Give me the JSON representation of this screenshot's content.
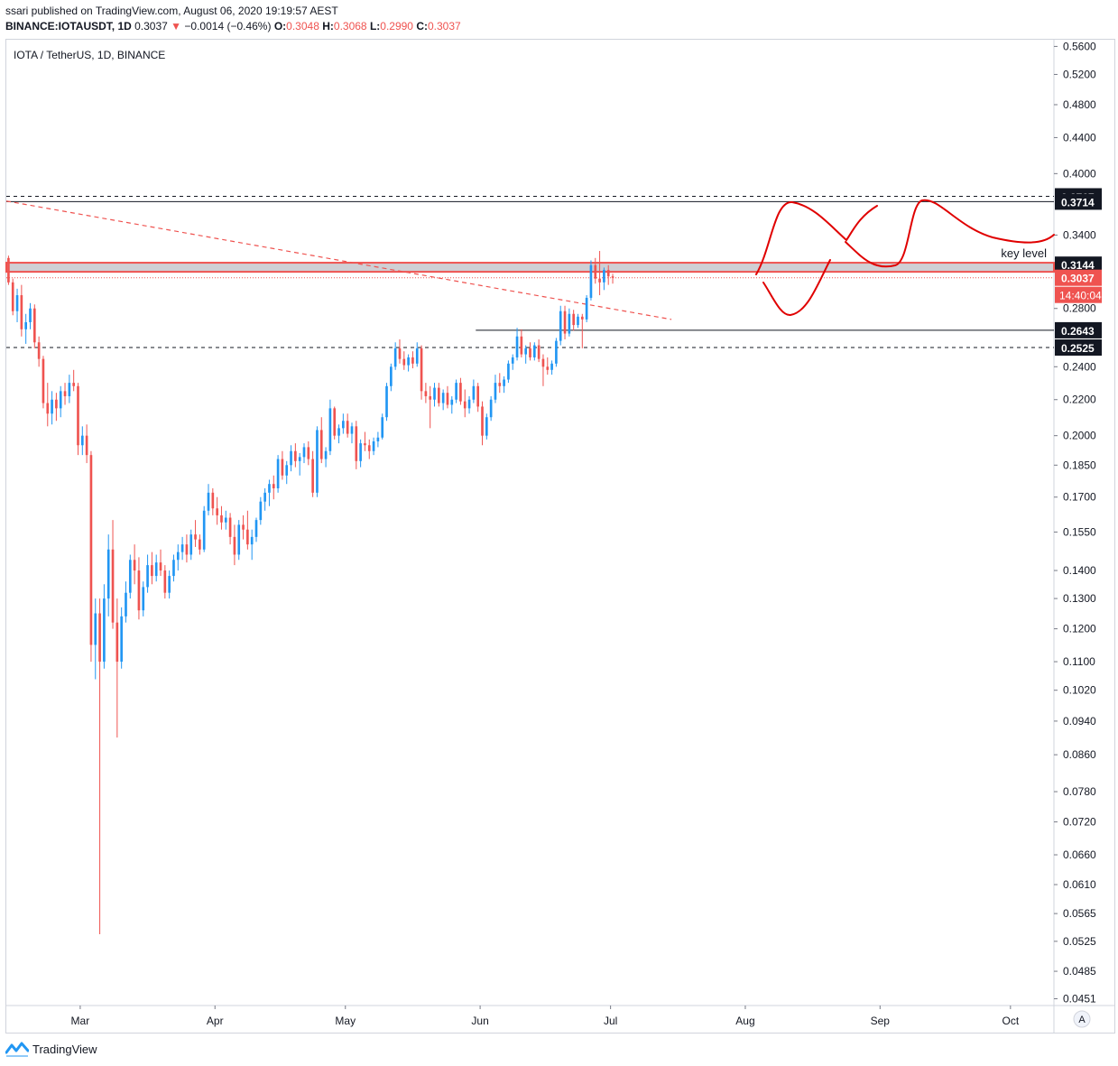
{
  "header": {
    "published": "ssari published on TradingView.com, August 06, 2020 19:19:57 AEST",
    "symbol": "BINANCE:IOTAUSDT, 1D",
    "last": "0.3037",
    "down_arrow": "▼",
    "change": "−0.0014 (−0.46%)",
    "o_label": "O:",
    "o_value": "0.3048",
    "h_label": "H:",
    "h_value": "0.3068",
    "l_label": "L:",
    "l_value": "0.2990",
    "c_label": "C:",
    "c_value": "0.3037"
  },
  "legend": "IOTA / TetherUS, 1D, BINANCE",
  "footer": {
    "brand": "TradingView"
  },
  "colors": {
    "up": "#2196f3",
    "down": "#ef5350",
    "drawing": "#e00000",
    "zone": "#cfcfd4",
    "label_bg": "#131722"
  },
  "chart_data": {
    "type": "candlestick",
    "scale": "log",
    "title": "IOTA / TetherUS, 1D, BINANCE",
    "ylim": [
      0.0443,
      0.57
    ],
    "yticks": [
      0.56,
      0.52,
      0.48,
      0.44,
      0.4,
      0.34,
      0.28,
      0.24,
      0.22,
      0.2,
      0.185,
      0.17,
      0.155,
      0.14,
      0.13,
      0.12,
      0.11,
      0.102,
      0.094,
      0.086,
      0.078,
      0.072,
      0.066,
      0.061,
      0.0565,
      0.0525,
      0.0485,
      0.0451
    ],
    "ytick_labels": [
      "0.5600",
      "0.5200",
      "0.4800",
      "0.4400",
      "0.4000",
      "0.3400",
      "0.2800",
      "0.2400",
      "0.2200",
      "0.2000",
      "0.1850",
      "0.1700",
      "0.1550",
      "0.1400",
      "0.1300",
      "0.1200",
      "0.1100",
      "0.1020",
      "0.0940",
      "0.0860",
      "0.0780",
      "0.0720",
      "0.0660",
      "0.0610",
      "0.0565",
      "0.0525",
      "0.0485",
      "0.0451"
    ],
    "x_start": "2020-02-13",
    "x_range_days": [
      0,
      241
    ],
    "month_labels": [
      {
        "label": "Mar",
        "day": 17
      },
      {
        "label": "Apr",
        "day": 48
      },
      {
        "label": "May",
        "day": 78
      },
      {
        "label": "Jun",
        "day": 109
      },
      {
        "label": "Jul",
        "day": 139
      },
      {
        "label": "Aug",
        "day": 170
      },
      {
        "label": "Sep",
        "day": 201
      },
      {
        "label": "Oct",
        "day": 231
      }
    ],
    "price_labels": [
      {
        "value": "0.3767",
        "price": 0.3767,
        "style": "dashed"
      },
      {
        "value": "0.3714",
        "price": 0.3714,
        "style": "solid"
      },
      {
        "value": "0.3144",
        "price": 0.3144,
        "style": "zone"
      },
      {
        "value": "0.3037",
        "price": 0.3037,
        "style": "last"
      },
      {
        "value": "0.2643",
        "price": 0.2643,
        "style": "solid"
      },
      {
        "value": "0.2525",
        "price": 0.2525,
        "style": "dashed"
      }
    ],
    "countdown": "14:40:04",
    "key_level": {
      "label": "key level",
      "low": 0.3085,
      "high": 0.316
    },
    "ohlc": [
      [
        0.32,
        0.322,
        0.298,
        0.3
      ],
      [
        0.3,
        0.303,
        0.275,
        0.278
      ],
      [
        0.278,
        0.295,
        0.27,
        0.29
      ],
      [
        0.29,
        0.298,
        0.26,
        0.265
      ],
      [
        0.265,
        0.276,
        0.255,
        0.27
      ],
      [
        0.27,
        0.284,
        0.265,
        0.28
      ],
      [
        0.28,
        0.283,
        0.252,
        0.256
      ],
      [
        0.256,
        0.26,
        0.24,
        0.245
      ],
      [
        0.245,
        0.247,
        0.215,
        0.218
      ],
      [
        0.218,
        0.23,
        0.205,
        0.212
      ],
      [
        0.212,
        0.225,
        0.206,
        0.22
      ],
      [
        0.22,
        0.224,
        0.208,
        0.215
      ],
      [
        0.215,
        0.228,
        0.21,
        0.225
      ],
      [
        0.225,
        0.23,
        0.217,
        0.222
      ],
      [
        0.222,
        0.235,
        0.218,
        0.23
      ],
      [
        0.23,
        0.238,
        0.225,
        0.228
      ],
      [
        0.228,
        0.23,
        0.19,
        0.195
      ],
      [
        0.195,
        0.205,
        0.19,
        0.2
      ],
      [
        0.2,
        0.206,
        0.186,
        0.19
      ],
      [
        0.19,
        0.192,
        0.11,
        0.115
      ],
      [
        0.115,
        0.13,
        0.105,
        0.125
      ],
      [
        0.125,
        0.13,
        0.0535,
        0.11
      ],
      [
        0.11,
        0.135,
        0.108,
        0.13
      ],
      [
        0.13,
        0.154,
        0.124,
        0.148
      ],
      [
        0.148,
        0.16,
        0.12,
        0.122
      ],
      [
        0.122,
        0.13,
        0.09,
        0.11
      ],
      [
        0.11,
        0.127,
        0.108,
        0.124
      ],
      [
        0.124,
        0.136,
        0.122,
        0.132
      ],
      [
        0.132,
        0.146,
        0.13,
        0.144
      ],
      [
        0.144,
        0.15,
        0.135,
        0.14
      ],
      [
        0.14,
        0.145,
        0.123,
        0.126
      ],
      [
        0.126,
        0.136,
        0.124,
        0.134
      ],
      [
        0.134,
        0.146,
        0.132,
        0.142
      ],
      [
        0.142,
        0.147,
        0.135,
        0.138
      ],
      [
        0.138,
        0.146,
        0.136,
        0.143
      ],
      [
        0.143,
        0.148,
        0.138,
        0.14
      ],
      [
        0.14,
        0.142,
        0.13,
        0.132
      ],
      [
        0.132,
        0.14,
        0.13,
        0.138
      ],
      [
        0.138,
        0.146,
        0.136,
        0.144
      ],
      [
        0.144,
        0.15,
        0.14,
        0.147
      ],
      [
        0.147,
        0.153,
        0.144,
        0.15
      ],
      [
        0.15,
        0.154,
        0.143,
        0.146
      ],
      [
        0.146,
        0.156,
        0.144,
        0.154
      ],
      [
        0.154,
        0.16,
        0.149,
        0.152
      ],
      [
        0.152,
        0.154,
        0.146,
        0.148
      ],
      [
        0.148,
        0.166,
        0.147,
        0.164
      ],
      [
        0.164,
        0.176,
        0.162,
        0.172
      ],
      [
        0.172,
        0.174,
        0.162,
        0.165
      ],
      [
        0.165,
        0.17,
        0.158,
        0.162
      ],
      [
        0.162,
        0.166,
        0.156,
        0.159
      ],
      [
        0.159,
        0.164,
        0.156,
        0.161
      ],
      [
        0.161,
        0.163,
        0.15,
        0.153
      ],
      [
        0.153,
        0.158,
        0.142,
        0.146
      ],
      [
        0.146,
        0.16,
        0.144,
        0.158
      ],
      [
        0.158,
        0.162,
        0.152,
        0.156
      ],
      [
        0.156,
        0.164,
        0.148,
        0.15
      ],
      [
        0.15,
        0.156,
        0.144,
        0.153
      ],
      [
        0.153,
        0.161,
        0.151,
        0.16
      ],
      [
        0.16,
        0.17,
        0.158,
        0.168
      ],
      [
        0.168,
        0.174,
        0.164,
        0.172
      ],
      [
        0.172,
        0.178,
        0.166,
        0.176
      ],
      [
        0.176,
        0.18,
        0.169,
        0.174
      ],
      [
        0.174,
        0.19,
        0.172,
        0.188
      ],
      [
        0.188,
        0.192,
        0.178,
        0.18
      ],
      [
        0.18,
        0.187,
        0.176,
        0.185
      ],
      [
        0.185,
        0.195,
        0.182,
        0.192
      ],
      [
        0.192,
        0.196,
        0.184,
        0.187
      ],
      [
        0.187,
        0.191,
        0.18,
        0.189
      ],
      [
        0.189,
        0.196,
        0.186,
        0.194
      ],
      [
        0.194,
        0.197,
        0.185,
        0.188
      ],
      [
        0.188,
        0.192,
        0.17,
        0.172
      ],
      [
        0.172,
        0.205,
        0.17,
        0.203
      ],
      [
        0.203,
        0.21,
        0.186,
        0.188
      ],
      [
        0.188,
        0.194,
        0.184,
        0.192
      ],
      [
        0.192,
        0.22,
        0.19,
        0.215
      ],
      [
        0.215,
        0.216,
        0.198,
        0.2
      ],
      [
        0.2,
        0.206,
        0.196,
        0.204
      ],
      [
        0.204,
        0.212,
        0.201,
        0.208
      ],
      [
        0.208,
        0.212,
        0.199,
        0.201
      ],
      [
        0.201,
        0.207,
        0.196,
        0.205
      ],
      [
        0.205,
        0.208,
        0.183,
        0.187
      ],
      [
        0.187,
        0.198,
        0.184,
        0.196
      ],
      [
        0.196,
        0.202,
        0.192,
        0.195
      ],
      [
        0.195,
        0.198,
        0.188,
        0.192
      ],
      [
        0.192,
        0.199,
        0.19,
        0.197
      ],
      [
        0.197,
        0.202,
        0.194,
        0.199
      ],
      [
        0.199,
        0.212,
        0.198,
        0.21
      ],
      [
        0.21,
        0.23,
        0.208,
        0.228
      ],
      [
        0.228,
        0.242,
        0.225,
        0.24
      ],
      [
        0.24,
        0.256,
        0.238,
        0.252
      ],
      [
        0.252,
        0.258,
        0.242,
        0.245
      ],
      [
        0.245,
        0.25,
        0.238,
        0.241
      ],
      [
        0.241,
        0.248,
        0.237,
        0.246
      ],
      [
        0.246,
        0.25,
        0.239,
        0.242
      ],
      [
        0.242,
        0.256,
        0.24,
        0.252
      ],
      [
        0.252,
        0.254,
        0.22,
        0.225
      ],
      [
        0.225,
        0.23,
        0.218,
        0.222
      ],
      [
        0.222,
        0.228,
        0.204,
        0.22
      ],
      [
        0.22,
        0.23,
        0.216,
        0.227
      ],
      [
        0.227,
        0.23,
        0.216,
        0.218
      ],
      [
        0.218,
        0.226,
        0.214,
        0.224
      ],
      [
        0.224,
        0.228,
        0.215,
        0.217
      ],
      [
        0.217,
        0.222,
        0.212,
        0.22
      ],
      [
        0.22,
        0.232,
        0.218,
        0.23
      ],
      [
        0.23,
        0.233,
        0.217,
        0.219
      ],
      [
        0.219,
        0.226,
        0.21,
        0.215
      ],
      [
        0.215,
        0.222,
        0.212,
        0.22
      ],
      [
        0.22,
        0.232,
        0.218,
        0.228
      ],
      [
        0.228,
        0.23,
        0.213,
        0.216
      ],
      [
        0.216,
        0.219,
        0.195,
        0.2
      ],
      [
        0.2,
        0.212,
        0.198,
        0.21
      ],
      [
        0.21,
        0.222,
        0.208,
        0.22
      ],
      [
        0.22,
        0.235,
        0.218,
        0.23
      ],
      [
        0.23,
        0.236,
        0.224,
        0.228
      ],
      [
        0.228,
        0.234,
        0.224,
        0.232
      ],
      [
        0.232,
        0.244,
        0.23,
        0.242
      ],
      [
        0.242,
        0.248,
        0.238,
        0.246
      ],
      [
        0.246,
        0.266,
        0.244,
        0.26
      ],
      [
        0.26,
        0.265,
        0.246,
        0.248
      ],
      [
        0.248,
        0.254,
        0.242,
        0.252
      ],
      [
        0.252,
        0.256,
        0.244,
        0.246
      ],
      [
        0.246,
        0.256,
        0.244,
        0.254
      ],
      [
        0.254,
        0.258,
        0.243,
        0.245
      ],
      [
        0.245,
        0.248,
        0.228,
        0.24
      ],
      [
        0.24,
        0.246,
        0.235,
        0.238
      ],
      [
        0.238,
        0.244,
        0.235,
        0.242
      ],
      [
        0.242,
        0.259,
        0.24,
        0.257
      ],
      [
        0.257,
        0.282,
        0.254,
        0.278
      ],
      [
        0.278,
        0.282,
        0.258,
        0.262
      ],
      [
        0.262,
        0.28,
        0.26,
        0.276
      ],
      [
        0.276,
        0.279,
        0.264,
        0.268
      ],
      [
        0.268,
        0.276,
        0.266,
        0.274
      ],
      [
        0.274,
        0.276,
        0.252,
        0.272
      ],
      [
        0.272,
        0.29,
        0.27,
        0.288
      ],
      [
        0.288,
        0.318,
        0.286,
        0.314
      ],
      [
        0.314,
        0.32,
        0.299,
        0.303
      ],
      [
        0.303,
        0.326,
        0.29,
        0.3
      ],
      [
        0.3,
        0.312,
        0.294,
        0.31
      ],
      [
        0.31,
        0.314,
        0.298,
        0.3048
      ],
      [
        0.3048,
        0.3068,
        0.299,
        0.3037
      ]
    ]
  }
}
